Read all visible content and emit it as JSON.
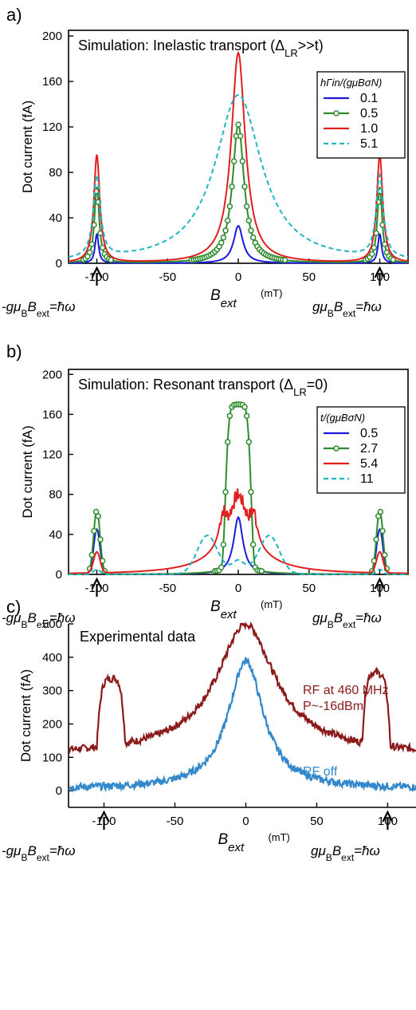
{
  "chart_data": [
    {
      "panel_label": "a)",
      "type": "line",
      "title": "Simulation: Inelastic transport",
      "title_suffix": "(Δ",
      "title_sub": "LR",
      "title_tail": ">>t)",
      "xlabel": "B",
      "xlabel_sub": "ext",
      "xunit": "(mT)",
      "ylabel": "Dot current (fA)",
      "xlim": [
        -120,
        120
      ],
      "ylim": [
        0,
        205
      ],
      "xticks": [
        -100,
        -50,
        0,
        50,
        100
      ],
      "yticks": [
        0,
        40,
        80,
        120,
        160,
        200
      ],
      "legend_title": "hΓin/(gμBσN)",
      "legend_position": "right",
      "annotations": [
        "-gμBBext=ħω",
        "gμBBext=ħω"
      ],
      "peak_positions": [
        -100,
        0,
        100
      ],
      "series": [
        {
          "name": "0.1",
          "color": "#1a1adc",
          "style": "solid",
          "peaks": [
            26,
            33,
            26
          ],
          "widths": [
            1.5,
            4,
            1.5
          ],
          "base": 0
        },
        {
          "name": "0.5",
          "color": "#2e8b2e",
          "style": "markers",
          "peaks": [
            67,
            122,
            67
          ],
          "widths": [
            2,
            5,
            2
          ],
          "base": 0
        },
        {
          "name": "1.0",
          "color": "#e02020",
          "style": "solid",
          "peaks": [
            95,
            185,
            95
          ],
          "widths": [
            2.5,
            6,
            2.5
          ],
          "base": 0
        },
        {
          "name": "5.1",
          "color": "#20b5c0",
          "style": "dashed",
          "peaks": [
            72,
            148,
            72
          ],
          "widths": [
            3,
            20,
            3
          ],
          "base": 0
        }
      ]
    },
    {
      "panel_label": "b)",
      "type": "line",
      "title": "Simulation: Resonant transport",
      "title_suffix": "(Δ",
      "title_sub": "LR",
      "title_tail": "=0)",
      "xlabel": "B",
      "xlabel_sub": "ext",
      "xunit": "(mT)",
      "ylabel": "Dot current (fA)",
      "xlim": [
        -120,
        120
      ],
      "ylim": [
        0,
        205
      ],
      "xticks": [
        -100,
        -50,
        0,
        50,
        100
      ],
      "yticks": [
        0,
        40,
        80,
        120,
        160,
        200
      ],
      "legend_title": "t/(gμBσN)",
      "legend_position": "right",
      "annotations": [
        "-gμBBext=ħω",
        "gμBBext=ħω"
      ],
      "series": [
        {
          "name": "0.5",
          "color": "#1a1adc",
          "style": "solid",
          "side_peak": 45,
          "center_peak": 57,
          "center_width": 4
        },
        {
          "name": "2.7",
          "color": "#2e8b2e",
          "style": "markers",
          "side_peak": 64,
          "center_peak": 162,
          "center_width": 9
        },
        {
          "name": "5.4",
          "color": "#e02020",
          "style": "solid",
          "side_peak": 21,
          "center_peak": 62,
          "center_width": 15
        },
        {
          "name": "11",
          "color": "#20b5c0",
          "style": "dashed",
          "side_peak": 5,
          "center_peak": 40,
          "center_width": 25
        }
      ]
    },
    {
      "panel_label": "c)",
      "type": "line",
      "title": "Experimental data",
      "xlabel": "B",
      "xlabel_sub": "ext",
      "xunit": "(mT)",
      "ylabel": "Dot current (fA)",
      "xlim": [
        -125,
        120
      ],
      "ylim": [
        -50,
        500
      ],
      "xticks": [
        -100,
        -50,
        0,
        50,
        100
      ],
      "yticks": [
        0,
        100,
        200,
        300,
        400,
        500
      ],
      "annotations": [
        "-gμBBext=ħω",
        "gμBBext=ħω"
      ],
      "series": [
        {
          "name": "RF at 460 MHz",
          "name2": "P~-16dBm",
          "color": "#8b1a1a",
          "base": 110,
          "center_peak": 475,
          "side_peaks": [
            [
              -95,
              380
            ],
            [
              92,
              395
            ]
          ]
        },
        {
          "name": "RF off",
          "color": "#3388cc",
          "base": 5,
          "center_peak": 390
        }
      ]
    }
  ]
}
